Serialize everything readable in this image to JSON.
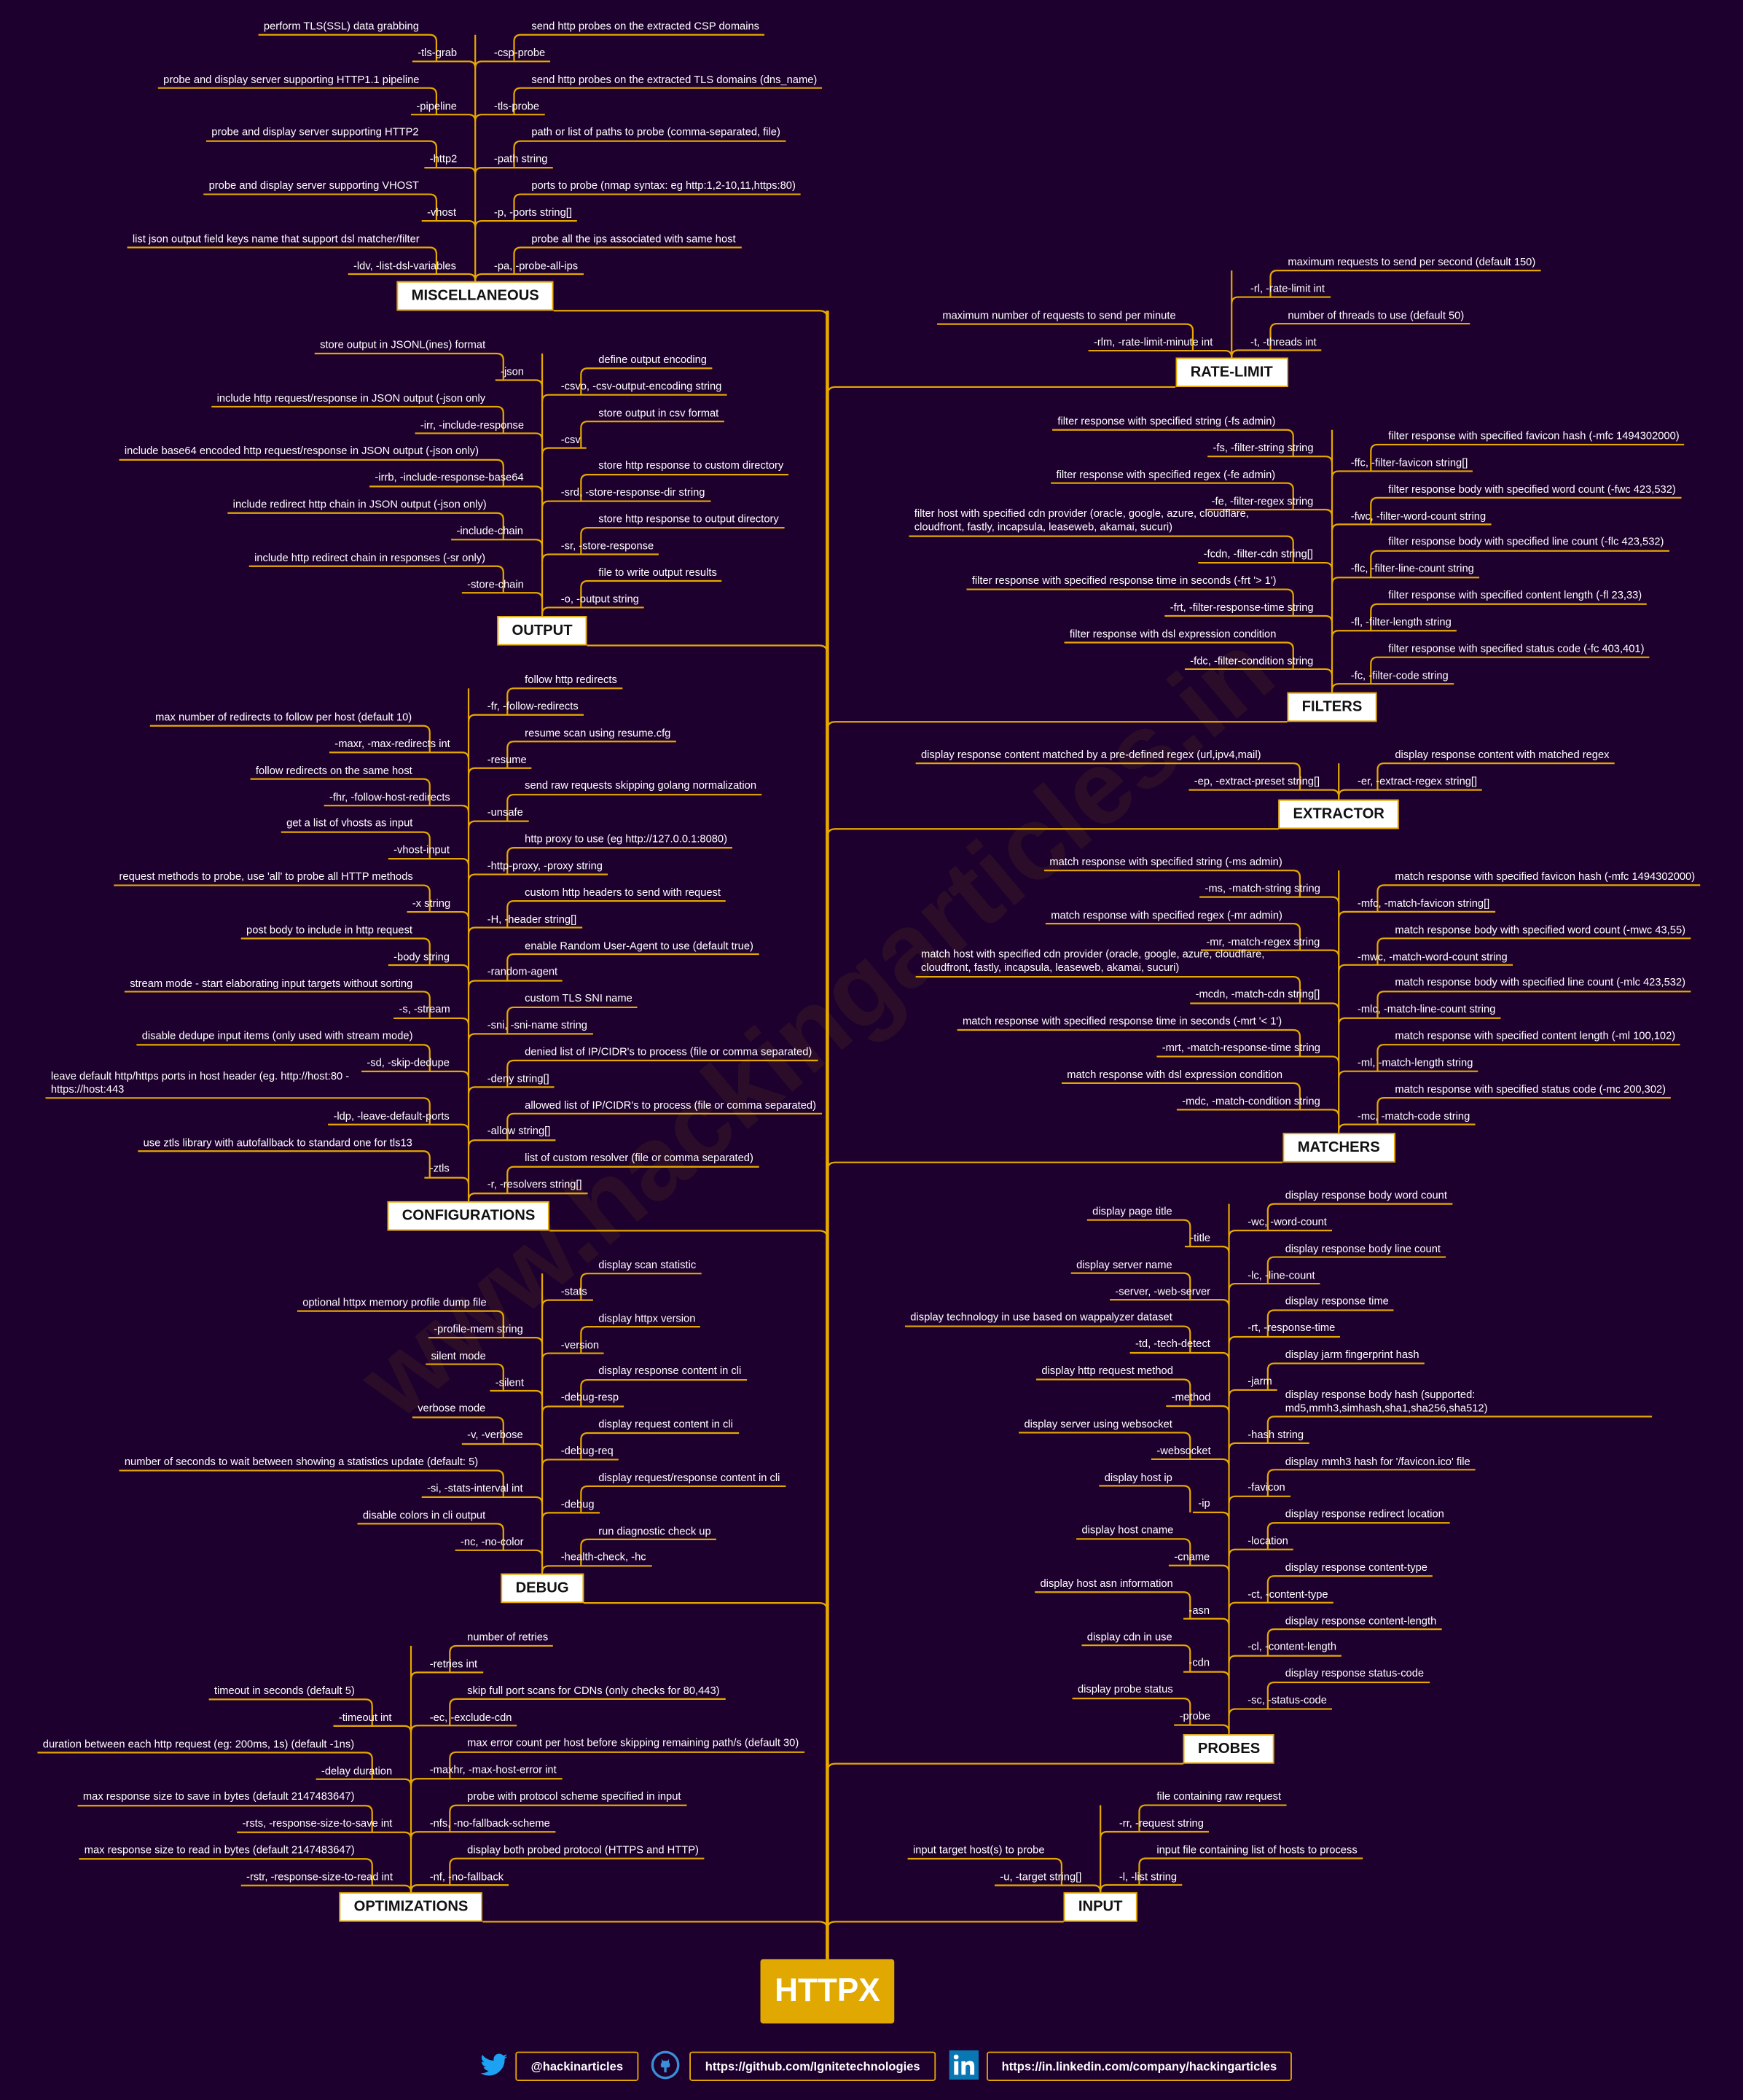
{
  "root": "HTTPX",
  "watermark": "www.hackingarticles.in",
  "colors": {
    "background": "#1d002d",
    "accent": "#e6a800",
    "label_bg": "#ffffff"
  },
  "branches": [
    {
      "id": "misc",
      "title": "MISCELLANEOUS",
      "left": [
        {
          "f": "-tls-grab",
          "d": "perform TLS(SSL) data grabbing"
        },
        {
          "f": "-pipeline",
          "d": "probe and display server supporting HTTP1.1 pipeline"
        },
        {
          "f": "-http2",
          "d": "probe and display server supporting HTTP2"
        },
        {
          "f": "-vhost",
          "d": "probe and display server supporting VHOST"
        },
        {
          "f": "-ldv, -list-dsl-variables",
          "d": "list json output field keys name that support dsl matcher/filter"
        }
      ],
      "right": [
        {
          "f": "-csp-probe",
          "d": "send http probes on the extracted CSP domains"
        },
        {
          "f": "-tls-probe",
          "d": "send http probes on the extracted TLS domains (dns_name)"
        },
        {
          "f": "-path string",
          "d": "path or list of paths to probe (comma-separated, file)"
        },
        {
          "f": "-p, -ports string[]",
          "d": "ports to probe (nmap syntax: eg http:1,2-10,11,https:80)"
        },
        {
          "f": "-pa, -probe-all-ips",
          "d": "probe all the ips associated with same host"
        }
      ]
    },
    {
      "id": "output",
      "title": "OUTPUT",
      "left": [
        {
          "f": "-json",
          "d": "store output in JSONL(ines) format"
        },
        {
          "f": "-irr, -include-response",
          "d": "include http request/response in JSON output (-json only"
        },
        {
          "f": "-irrb, -include-response-base64",
          "d": "include base64 encoded http request/response in JSON output (-json only)"
        },
        {
          "f": "-include-chain",
          "d": "include redirect http chain in JSON output (-json only)"
        },
        {
          "f": "-store-chain",
          "d": "include http redirect chain in responses (-sr only)"
        }
      ],
      "right": [
        {
          "f": "-csvo, -csv-output-encoding string",
          "d": "define output encoding"
        },
        {
          "f": "-csv",
          "d": "store output in csv format"
        },
        {
          "f": "-srd, -store-response-dir string",
          "d": "store http response to custom directory"
        },
        {
          "f": "-sr, -store-response",
          "d": "store http response to output directory"
        },
        {
          "f": "-o, -output string",
          "d": "file to write output results"
        }
      ]
    },
    {
      "id": "config",
      "title": "CONFIGURATIONS",
      "left": [
        {
          "f": "-maxr, -max-redirects int",
          "d": "max number of redirects to follow per host (default 10)"
        },
        {
          "f": "-fhr, -follow-host-redirects",
          "d": "follow redirects on the same host"
        },
        {
          "f": "-vhost-input",
          "d": "get a list of vhosts as input"
        },
        {
          "f": "-x string",
          "d": "request methods to probe, use 'all' to probe all HTTP methods"
        },
        {
          "f": "-body string",
          "d": "post body to include in http request"
        },
        {
          "f": "-s, -stream",
          "d": "stream mode - start elaborating input targets without sorting"
        },
        {
          "f": "-sd, -skip-dedupe",
          "d": "disable dedupe input items (only used with stream mode)"
        },
        {
          "f": "-ldp, -leave-default-ports",
          "d": "leave default http/https ports in host header (eg. http://host:80 - https://host:443"
        },
        {
          "f": "-ztls",
          "d": "use ztls library with autofallback to standard one for tls13"
        }
      ],
      "right": [
        {
          "f": "-fr, -follow-redirects",
          "d": "follow http redirects"
        },
        {
          "f": "-resume",
          "d": "resume scan using resume.cfg"
        },
        {
          "f": "-unsafe",
          "d": "send raw requests skipping golang normalization"
        },
        {
          "f": "-http-proxy, -proxy string",
          "d": "http proxy to use (eg http://127.0.0.1:8080)"
        },
        {
          "f": "-H, -header string[]",
          "d": "custom http headers to send with request"
        },
        {
          "f": "-random-agent",
          "d": "enable Random User-Agent to use (default true)"
        },
        {
          "f": "-sni, -sni-name string",
          "d": "custom TLS SNI name"
        },
        {
          "f": "-deny string[]",
          "d": "denied list of IP/CIDR's to process (file or comma separated)"
        },
        {
          "f": "-allow string[]",
          "d": "allowed list of IP/CIDR's to process (file or comma separated)"
        },
        {
          "f": "-r, -resolvers string[]",
          "d": "list of custom resolver (file or comma separated)"
        }
      ]
    },
    {
      "id": "debug",
      "title": "DEBUG",
      "left": [
        {
          "f": "-profile-mem string",
          "d": "optional httpx memory profile dump file"
        },
        {
          "f": "-silent",
          "d": "silent mode"
        },
        {
          "f": "-v, -verbose",
          "d": "verbose mode"
        },
        {
          "f": "-si, -stats-interval int",
          "d": "number of seconds to wait between showing a statistics update (default: 5)"
        },
        {
          "f": "-nc, -no-color",
          "d": "disable colors in cli output"
        }
      ],
      "right": [
        {
          "f": "-stats",
          "d": "display scan statistic"
        },
        {
          "f": "-version",
          "d": "display httpx version"
        },
        {
          "f": "-debug-resp",
          "d": "display response content in cli"
        },
        {
          "f": "-debug-req",
          "d": "display request content in cli"
        },
        {
          "f": "-debug",
          "d": "display request/response content in cli"
        },
        {
          "f": "-health-check, -hc",
          "d": "run diagnostic check up"
        }
      ]
    },
    {
      "id": "optim",
      "title": "OPTIMIZATIONS",
      "left": [
        {
          "f": "-timeout int",
          "d": "timeout in seconds (default 5)"
        },
        {
          "f": "-delay duration",
          "d": "duration between each http request (eg: 200ms, 1s) (default -1ns)"
        },
        {
          "f": "-rsts, -response-size-to-save int",
          "d": "max response size to save in bytes (default 2147483647)"
        },
        {
          "f": "-rstr, -response-size-to-read int",
          "d": "max response size to read in bytes (default 2147483647)"
        }
      ],
      "right": [
        {
          "f": "-retries int",
          "d": "number of retries"
        },
        {
          "f": "-ec, -exclude-cdn",
          "d": "skip full port scans for CDNs (only checks for 80,443)"
        },
        {
          "f": "-maxhr, -max-host-error int",
          "d": "max error count per host before skipping remaining path/s (default 30)"
        },
        {
          "f": "-nfs, -no-fallback-scheme",
          "d": "probe with protocol scheme specified in input"
        },
        {
          "f": "-nf, -no-fallback",
          "d": "display both probed protocol (HTTPS and HTTP)"
        }
      ]
    },
    {
      "id": "rate",
      "title": "RATE-LIMIT",
      "left": [
        {
          "f": "-rlm, -rate-limit-minute int",
          "d": "maximum number of requests to send per minute"
        }
      ],
      "right": [
        {
          "f": "-rl, -rate-limit int",
          "d": "maximum requests to send per second (default 150)"
        },
        {
          "f": "-t, -threads int",
          "d": "number of threads to use (default 50)"
        }
      ]
    },
    {
      "id": "filters",
      "title": "FILTERS",
      "left": [
        {
          "f": "-fs, -filter-string string",
          "d": "filter response with specified string (-fs admin)"
        },
        {
          "f": "-fe, -filter-regex string",
          "d": "filter response with specified regex (-fe admin)"
        },
        {
          "f": "-fcdn, -filter-cdn string[]",
          "d": "filter host with specified cdn provider (oracle, google, azure, cloudflare, cloudfront, fastly, incapsula, leaseweb, akamai, sucuri)"
        },
        {
          "f": "-frt, -filter-response-time string",
          "d": "filter response with specified response time in seconds (-frt '> 1')"
        },
        {
          "f": "-fdc, -filter-condition string",
          "d": "filter response with dsl expression condition"
        }
      ],
      "right": [
        {
          "f": "-ffc, -filter-favicon string[]",
          "d": "filter response with specified favicon hash (-mfc 1494302000)"
        },
        {
          "f": "-fwc, -filter-word-count string",
          "d": "filter response body with specified word count (-fwc 423,532)"
        },
        {
          "f": "-flc, -filter-line-count string",
          "d": "filter response body with specified line count (-flc 423,532)"
        },
        {
          "f": "-fl, -filter-length string",
          "d": "filter response with specified content length (-fl 23,33)"
        },
        {
          "f": "-fc, -filter-code string",
          "d": "filter response with specified status code (-fc 403,401)"
        }
      ]
    },
    {
      "id": "extractor",
      "title": "EXTRACTOR",
      "left": [
        {
          "f": "-ep, -extract-preset string[]",
          "d": "display response content matched by a pre-defined regex (url,ipv4,mail)"
        }
      ],
      "right": [
        {
          "f": "-er, -extract-regex string[]",
          "d": "display response content with matched regex"
        }
      ]
    },
    {
      "id": "matchers",
      "title": "MATCHERS",
      "left": [
        {
          "f": "-ms, -match-string string",
          "d": "match response with specified string (-ms admin)"
        },
        {
          "f": "-mr, -match-regex string",
          "d": "match response with specified regex (-mr admin)"
        },
        {
          "f": "-mcdn, -match-cdn string[]",
          "d": "match host with specified cdn provider (oracle, google, azure, cloudflare, cloudfront, fastly, incapsula, leaseweb, akamai, sucuri)"
        },
        {
          "f": "-mrt, -match-response-time string",
          "d": "match response with specified response time in seconds (-mrt '< 1')"
        },
        {
          "f": "-mdc, -match-condition string",
          "d": "match response with dsl expression condition"
        }
      ],
      "right": [
        {
          "f": "-mfc, -match-favicon string[]",
          "d": "match response with specified favicon hash (-mfc 1494302000)"
        },
        {
          "f": "-mwc, -match-word-count string",
          "d": "match response body with specified word count (-mwc 43,55)"
        },
        {
          "f": "-mlc, -match-line-count string",
          "d": "match response body with specified line count (-mlc 423,532)"
        },
        {
          "f": "-ml, -match-length string",
          "d": "match response with specified content length (-ml 100,102)"
        },
        {
          "f": "-mc, -match-code string",
          "d": "match response with specified status code (-mc 200,302)"
        }
      ]
    },
    {
      "id": "probes",
      "title": "PROBES",
      "left": [
        {
          "f": "-title",
          "d": "display page title"
        },
        {
          "f": "-server, -web-server",
          "d": "display server name"
        },
        {
          "f": "-td, -tech-detect",
          "d": "display technology in use based on wappalyzer dataset"
        },
        {
          "f": "-method",
          "d": "display http request method"
        },
        {
          "f": "-websocket",
          "d": "display server using websocket"
        },
        {
          "f": "-ip",
          "d": "display host ip"
        },
        {
          "f": "-cname",
          "d": "display host cname"
        },
        {
          "f": "-asn",
          "d": "display host asn information"
        },
        {
          "f": "-cdn",
          "d": "display cdn in use"
        },
        {
          "f": "-probe",
          "d": "display probe status"
        }
      ],
      "right": [
        {
          "f": "-wc, -word-count",
          "d": "display response body word count"
        },
        {
          "f": "-lc, -line-count",
          "d": "display response body line count"
        },
        {
          "f": "-rt, -response-time",
          "d": "display response time"
        },
        {
          "f": "-jarm",
          "d": "display jarm fingerprint hash"
        },
        {
          "f": "-hash string",
          "d": "display response body hash (supported: md5,mmh3,simhash,sha1,sha256,sha512)"
        },
        {
          "f": "-favicon",
          "d": "display mmh3 hash for '/favicon.ico' file"
        },
        {
          "f": "-location",
          "d": "display response redirect location"
        },
        {
          "f": "-ct, -content-type",
          "d": "display response content-type"
        },
        {
          "f": "-cl, -content-length",
          "d": "display response content-length"
        },
        {
          "f": "-sc, -status-code",
          "d": "display response status-code"
        }
      ]
    },
    {
      "id": "input",
      "title": "INPUT",
      "left": [
        {
          "f": "-u, -target string[]",
          "d": "input target host(s) to probe"
        }
      ],
      "right": [
        {
          "f": "-rr, -request string",
          "d": "file containing raw request"
        },
        {
          "f": "-l, -list string",
          "d": "input file containing list of hosts to process"
        }
      ]
    }
  ],
  "footer": {
    "twitter": {
      "icon": "twitter-icon",
      "label": "@hackinarticles",
      "color": "#1da1f2"
    },
    "github": {
      "icon": "github-icon",
      "label": "https://github.com/Ignitetechnologies",
      "color": "#3a8fd8"
    },
    "linkedin": {
      "icon": "linkedin-icon",
      "label": "https://in.linkedin.com/company/hackingarticles",
      "color": "#0a77b5"
    }
  }
}
